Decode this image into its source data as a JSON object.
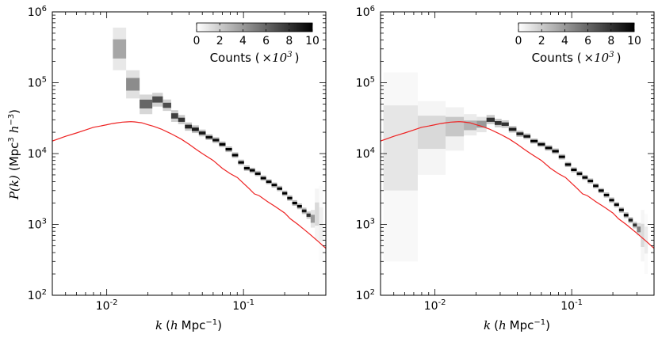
{
  "chart_data": [
    {
      "type": "heatmap",
      "panel": "left",
      "xscale": "log",
      "yscale": "log",
      "xlim": [
        0.004,
        0.4
      ],
      "ylim": [
        100,
        1000000
      ],
      "xticks": [
        {
          "value": 0.01,
          "base": "10",
          "exp": "-2"
        },
        {
          "value": 0.1,
          "base": "10",
          "exp": "-1"
        }
      ],
      "yticks": [
        {
          "value": 100,
          "base": "10",
          "exp": "2"
        },
        {
          "value": 1000,
          "base": "10",
          "exp": "3"
        },
        {
          "value": 10000,
          "base": "10",
          "exp": "4"
        },
        {
          "value": 100000,
          "base": "10",
          "exp": "5"
        },
        {
          "value": 1000000,
          "base": "10",
          "exp": "6"
        }
      ],
      "xlabel": {
        "var": "k",
        "open": "(",
        "h": "h",
        "unit": "Mpc",
        "exp": "−1",
        "close": ")"
      },
      "ylabel": {
        "var": "P(k)",
        "open": "(Mpc",
        "exp3": "3",
        "h": "h",
        "exp": "−3",
        "close": ")"
      },
      "colorbar": {
        "ticks": [
          "0",
          "2",
          "4",
          "6",
          "8",
          "10"
        ],
        "range": [
          0,
          10
        ],
        "label_prefix": "Counts (",
        "label_times": "×10",
        "label_exp": "3",
        "label_suffix": ")",
        "placement": "top-right"
      },
      "model_line": {
        "color": "#ee2222",
        "x": [
          0.004,
          0.005,
          0.006,
          0.007,
          0.008,
          0.009,
          0.01,
          0.011,
          0.012,
          0.013,
          0.014,
          0.015,
          0.016,
          0.018,
          0.02,
          0.022,
          0.025,
          0.028,
          0.03,
          0.035,
          0.04,
          0.045,
          0.05,
          0.06,
          0.07,
          0.08,
          0.09,
          0.1,
          0.11,
          0.12,
          0.13,
          0.15,
          0.17,
          0.2,
          0.22,
          0.25,
          0.3,
          0.35,
          0.4
        ],
        "y": [
          15000,
          17500,
          19500,
          21500,
          23500,
          24500,
          25500,
          26500,
          27200,
          27800,
          28000,
          28200,
          28000,
          27200,
          25500,
          24200,
          22200,
          20000,
          18800,
          16000,
          13500,
          11500,
          10000,
          8000,
          6200,
          5200,
          4600,
          3800,
          3200,
          2700,
          2550,
          2100,
          1800,
          1450,
          1200,
          1000,
          750,
          580,
          460
        ]
      },
      "cells": [
        {
          "k": 0.0124,
          "y": 300000,
          "lo": 150000,
          "hi": 600000,
          "count": 3.5
        },
        {
          "k": 0.0155,
          "y": 95000,
          "lo": 60000,
          "hi": 150000,
          "count": 4.5
        },
        {
          "k": 0.0195,
          "y": 50000,
          "lo": 36000,
          "hi": 68000,
          "count": 6
        },
        {
          "k": 0.0238,
          "y": 58000,
          "lo": 46000,
          "hi": 72000,
          "count": 7
        },
        {
          "k": 0.0278,
          "y": 48000,
          "lo": 40000,
          "hi": 58000,
          "count": 7
        },
        {
          "k": 0.0315,
          "y": 34000,
          "lo": 28000,
          "hi": 41000,
          "count": 7.5
        },
        {
          "k": 0.0352,
          "y": 30000,
          "lo": 26000,
          "hi": 35000,
          "count": 8
        },
        {
          "k": 0.0395,
          "y": 24000,
          "lo": 21000,
          "hi": 27500,
          "count": 8.5
        },
        {
          "k": 0.0445,
          "y": 22000,
          "lo": 19500,
          "hi": 25000,
          "count": 9
        },
        {
          "k": 0.05,
          "y": 19500,
          "lo": 17500,
          "hi": 21800,
          "count": 9
        },
        {
          "k": 0.056,
          "y": 17000,
          "lo": 15500,
          "hi": 18700,
          "count": 9.5
        },
        {
          "k": 0.063,
          "y": 15500,
          "lo": 14100,
          "hi": 17000,
          "count": 9.5
        },
        {
          "k": 0.07,
          "y": 13500,
          "lo": 12300,
          "hi": 14800,
          "count": 10
        },
        {
          "k": 0.078,
          "y": 11500,
          "lo": 10500,
          "hi": 12600,
          "count": 10
        },
        {
          "k": 0.087,
          "y": 9500,
          "lo": 8700,
          "hi": 10400,
          "count": 10
        },
        {
          "k": 0.096,
          "y": 7500,
          "lo": 6900,
          "hi": 8200,
          "count": 10
        },
        {
          "k": 0.106,
          "y": 6200,
          "lo": 5700,
          "hi": 6800,
          "count": 10
        },
        {
          "k": 0.116,
          "y": 5800,
          "lo": 5300,
          "hi": 6300,
          "count": 10
        },
        {
          "k": 0.127,
          "y": 5200,
          "lo": 4800,
          "hi": 5700,
          "count": 10
        },
        {
          "k": 0.14,
          "y": 4500,
          "lo": 4150,
          "hi": 4900,
          "count": 10
        },
        {
          "k": 0.153,
          "y": 4000,
          "lo": 3700,
          "hi": 4350,
          "count": 10
        },
        {
          "k": 0.168,
          "y": 3600,
          "lo": 3300,
          "hi": 3900,
          "count": 10
        },
        {
          "k": 0.184,
          "y": 3200,
          "lo": 2950,
          "hi": 3500,
          "count": 10
        },
        {
          "k": 0.2,
          "y": 2750,
          "lo": 2520,
          "hi": 3000,
          "count": 10
        },
        {
          "k": 0.218,
          "y": 2350,
          "lo": 2150,
          "hi": 2570,
          "count": 10
        },
        {
          "k": 0.237,
          "y": 2000,
          "lo": 1830,
          "hi": 2200,
          "count": 10
        },
        {
          "k": 0.257,
          "y": 1800,
          "lo": 1640,
          "hi": 1980,
          "count": 10
        },
        {
          "k": 0.278,
          "y": 1550,
          "lo": 1400,
          "hi": 1720,
          "count": 9
        },
        {
          "k": 0.3,
          "y": 1350,
          "lo": 1200,
          "hi": 1520,
          "count": 8
        },
        {
          "k": 0.32,
          "y": 1200,
          "lo": 900,
          "hi": 1600,
          "count": 4
        },
        {
          "k": 0.345,
          "y": 1400,
          "lo": 600,
          "hi": 3200,
          "count": 1.5
        },
        {
          "k": 0.37,
          "y": 1000,
          "lo": 300,
          "hi": 3500,
          "count": 0.6
        }
      ]
    },
    {
      "type": "heatmap",
      "panel": "right",
      "xscale": "log",
      "yscale": "log",
      "xlim": [
        0.004,
        0.4
      ],
      "ylim": [
        100,
        1000000
      ],
      "xticks": [
        {
          "value": 0.01,
          "base": "10",
          "exp": "-2"
        },
        {
          "value": 0.1,
          "base": "10",
          "exp": "-1"
        }
      ],
      "yticks": [
        {
          "value": 100,
          "base": "10",
          "exp": "2"
        },
        {
          "value": 1000,
          "base": "10",
          "exp": "3"
        },
        {
          "value": 10000,
          "base": "10",
          "exp": "4"
        },
        {
          "value": 100000,
          "base": "10",
          "exp": "5"
        },
        {
          "value": 1000000,
          "base": "10",
          "exp": "6"
        }
      ],
      "xlabel": {
        "var": "k",
        "open": "(",
        "h": "h",
        "unit": "Mpc",
        "exp": "−1",
        "close": ")"
      },
      "colorbar": {
        "ticks": [
          "0",
          "2",
          "4",
          "6",
          "8",
          "10"
        ],
        "range": [
          0,
          10
        ],
        "label_prefix": "Counts (",
        "label_times": "×10",
        "label_exp": "3",
        "label_suffix": ")",
        "placement": "top-right"
      },
      "model_line": {
        "color": "#ee2222",
        "x": [
          0.004,
          0.005,
          0.006,
          0.007,
          0.008,
          0.009,
          0.01,
          0.011,
          0.012,
          0.013,
          0.014,
          0.015,
          0.016,
          0.018,
          0.02,
          0.022,
          0.025,
          0.028,
          0.03,
          0.035,
          0.04,
          0.045,
          0.05,
          0.06,
          0.07,
          0.08,
          0.09,
          0.1,
          0.11,
          0.12,
          0.13,
          0.15,
          0.17,
          0.2,
          0.22,
          0.25,
          0.3,
          0.35,
          0.4
        ],
        "y": [
          15000,
          17500,
          19500,
          21500,
          23500,
          24500,
          25500,
          26500,
          27200,
          27800,
          28000,
          28200,
          28000,
          27200,
          25500,
          24200,
          22200,
          20000,
          18800,
          16000,
          13500,
          11500,
          10000,
          8000,
          6200,
          5200,
          4600,
          3800,
          3200,
          2700,
          2550,
          2100,
          1800,
          1450,
          1200,
          1000,
          750,
          580,
          460
        ]
      },
      "cells": [
        {
          "k": 0.0056,
          "y": 12000,
          "lo": 300,
          "hi": 140000,
          "count": 1
        },
        {
          "k": 0.01,
          "y": 20000,
          "lo": 5000,
          "hi": 55000,
          "count": 1.5
        },
        {
          "k": 0.0143,
          "y": 24000,
          "lo": 11000,
          "hi": 45000,
          "count": 2.2
        },
        {
          "k": 0.0185,
          "y": 25000,
          "lo": 18000,
          "hi": 36000,
          "count": 3
        },
        {
          "k": 0.022,
          "y": 26000,
          "lo": 20000,
          "hi": 33000,
          "count": 4
        },
        {
          "k": 0.0258,
          "y": 30000,
          "lo": 26000,
          "hi": 35000,
          "count": 8
        },
        {
          "k": 0.029,
          "y": 27000,
          "lo": 23500,
          "hi": 31000,
          "count": 8
        },
        {
          "k": 0.0325,
          "y": 26000,
          "lo": 23000,
          "hi": 29500,
          "count": 8
        },
        {
          "k": 0.037,
          "y": 22000,
          "lo": 19800,
          "hi": 24500,
          "count": 9
        },
        {
          "k": 0.042,
          "y": 19000,
          "lo": 17200,
          "hi": 21000,
          "count": 9
        },
        {
          "k": 0.047,
          "y": 17500,
          "lo": 16000,
          "hi": 19200,
          "count": 9.5
        },
        {
          "k": 0.053,
          "y": 15000,
          "lo": 13800,
          "hi": 16300,
          "count": 10
        },
        {
          "k": 0.06,
          "y": 13500,
          "lo": 12400,
          "hi": 14700,
          "count": 10
        },
        {
          "k": 0.068,
          "y": 12000,
          "lo": 11000,
          "hi": 13100,
          "count": 10
        },
        {
          "k": 0.076,
          "y": 10800,
          "lo": 9900,
          "hi": 11800,
          "count": 10
        },
        {
          "k": 0.085,
          "y": 9000,
          "lo": 8250,
          "hi": 9800,
          "count": 10
        },
        {
          "k": 0.094,
          "y": 7000,
          "lo": 6450,
          "hi": 7600,
          "count": 10
        },
        {
          "k": 0.104,
          "y": 5900,
          "lo": 5430,
          "hi": 6400,
          "count": 10
        },
        {
          "k": 0.114,
          "y": 5200,
          "lo": 4800,
          "hi": 5650,
          "count": 10
        },
        {
          "k": 0.125,
          "y": 4600,
          "lo": 4250,
          "hi": 5000,
          "count": 10
        },
        {
          "k": 0.137,
          "y": 4100,
          "lo": 3780,
          "hi": 4450,
          "count": 10
        },
        {
          "k": 0.15,
          "y": 3500,
          "lo": 3230,
          "hi": 3800,
          "count": 10
        },
        {
          "k": 0.164,
          "y": 3000,
          "lo": 2760,
          "hi": 3250,
          "count": 10
        },
        {
          "k": 0.18,
          "y": 2600,
          "lo": 2390,
          "hi": 2830,
          "count": 10
        },
        {
          "k": 0.196,
          "y": 2200,
          "lo": 2020,
          "hi": 2400,
          "count": 10
        },
        {
          "k": 0.213,
          "y": 1900,
          "lo": 1740,
          "hi": 2070,
          "count": 10
        },
        {
          "k": 0.231,
          "y": 1600,
          "lo": 1460,
          "hi": 1750,
          "count": 10
        },
        {
          "k": 0.25,
          "y": 1350,
          "lo": 1230,
          "hi": 1480,
          "count": 10
        },
        {
          "k": 0.27,
          "y": 1150,
          "lo": 1040,
          "hi": 1270,
          "count": 9
        },
        {
          "k": 0.29,
          "y": 980,
          "lo": 880,
          "hi": 1090,
          "count": 8
        },
        {
          "k": 0.31,
          "y": 850,
          "lo": 700,
          "hi": 1050,
          "count": 5
        },
        {
          "k": 0.33,
          "y": 700,
          "lo": 300,
          "hi": 1600,
          "count": 1.5
        },
        {
          "k": 0.35,
          "y": 600,
          "lo": 200,
          "hi": 1400,
          "count": 0.8
        }
      ]
    }
  ]
}
